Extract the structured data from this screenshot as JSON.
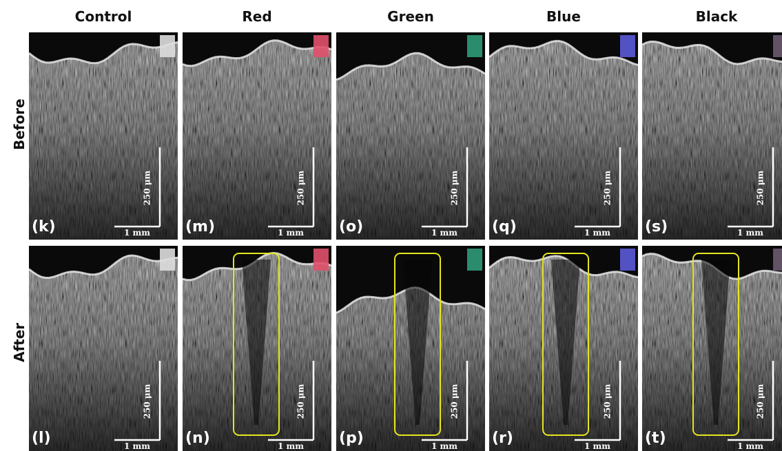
{
  "columns": [
    "Control",
    "Red",
    "Green",
    "Blue",
    "Black"
  ],
  "rows": [
    {
      "label": "Before",
      "panels": [
        {
          "label": "(k)",
          "scale_x": "1 mm",
          "scale_y": "250 μm"
        },
        {
          "label": "(m)",
          "scale_x": "1 mm",
          "scale_y": "250 μm"
        },
        {
          "label": "(o)",
          "scale_x": "1 mm",
          "scale_y": "250 μm"
        },
        {
          "label": "(q)",
          "scale_x": "1 mm",
          "scale_y": "250 μm"
        },
        {
          "label": "(s)",
          "scale_x": "1 mm",
          "scale_y": "250 μm"
        }
      ]
    },
    {
      "label": "After",
      "panels": [
        {
          "label": "(l)",
          "scale_x": "1 mm",
          "scale_y": "250 μm"
        },
        {
          "label": "(n)",
          "scale_x": "1 mm",
          "scale_y": "250 μm"
        },
        {
          "label": "(p)",
          "scale_x": "1 mm",
          "scale_y": "250 μm"
        },
        {
          "label": "(r)",
          "scale_x": "1 mm",
          "scale_y": "250 μm"
        },
        {
          "label": "(t)",
          "scale_x": "1 mm",
          "scale_y": "250 μm"
        }
      ]
    }
  ]
}
